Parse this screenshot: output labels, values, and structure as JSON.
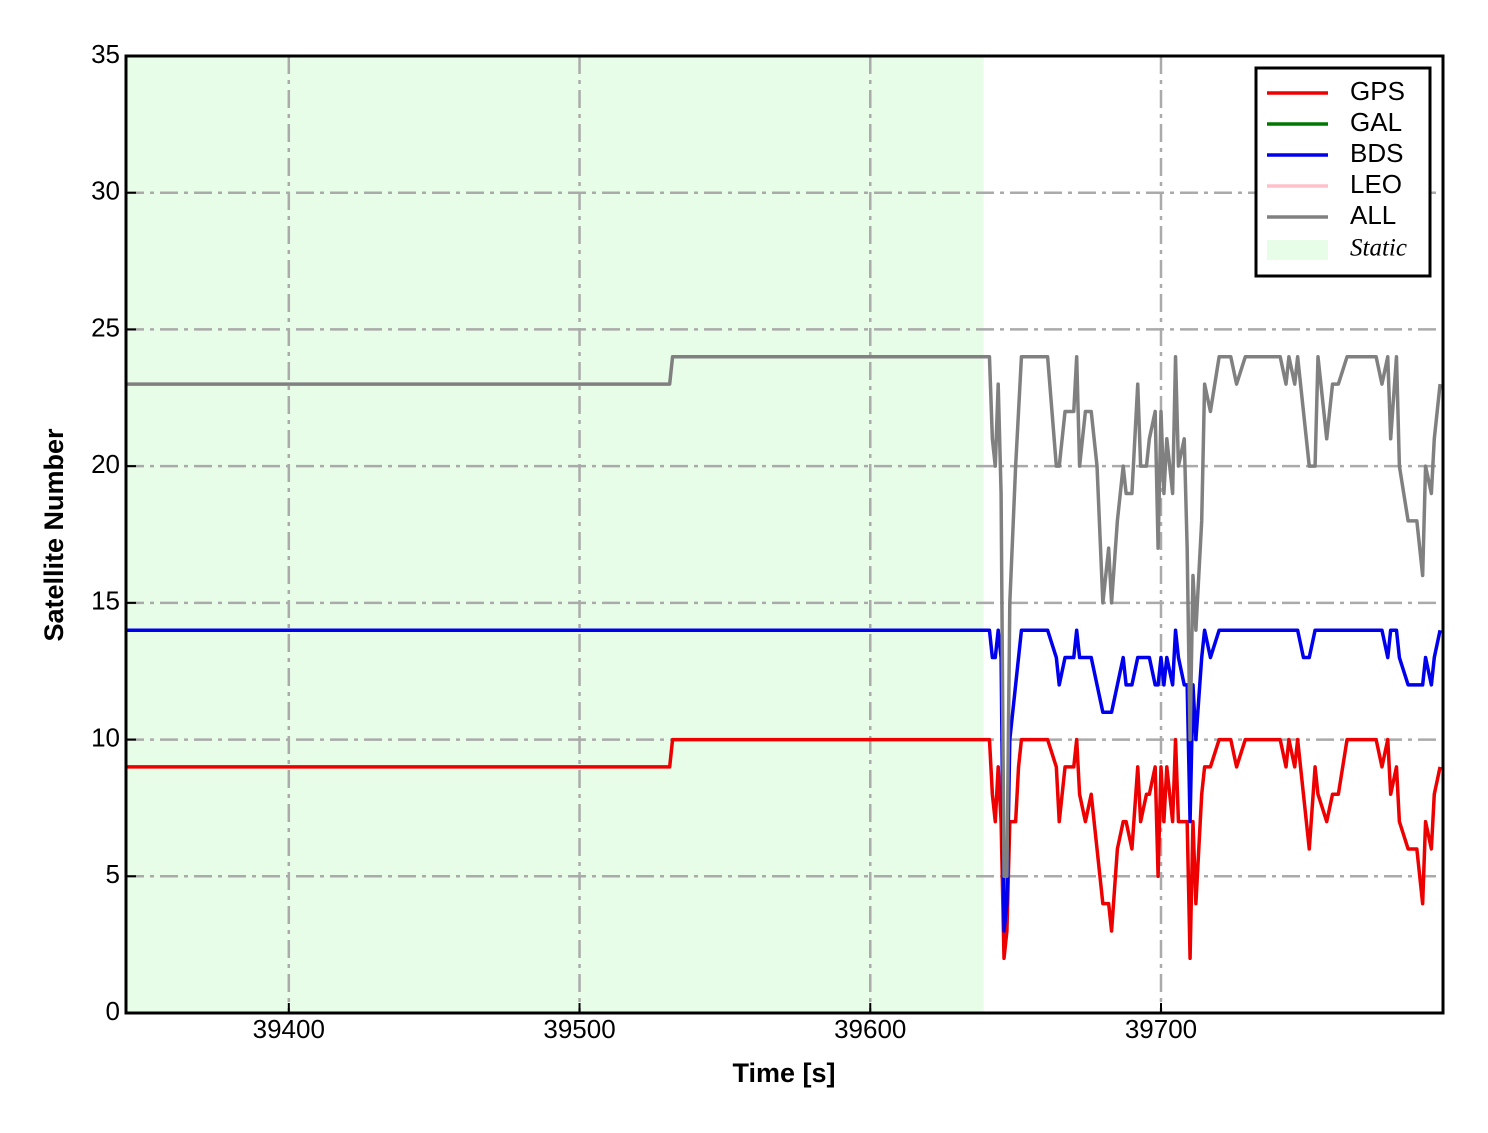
{
  "chart_data": {
    "type": "line",
    "xlabel": "Time [s]",
    "ylabel": "Satellite Number",
    "x": [
      39344,
      39531,
      39532,
      39640,
      39641,
      39642,
      39643,
      39644,
      39645,
      39646,
      39647,
      39648,
      39650,
      39651,
      39652,
      39661,
      39664,
      39665,
      39667,
      39670,
      39671,
      39672,
      39674,
      39676,
      39678,
      39680,
      39682,
      39683,
      39685,
      39687,
      39688,
      39690,
      39692,
      39693,
      39695,
      39696,
      39698,
      39699,
      39700,
      39701,
      39702,
      39704,
      39705,
      39706,
      39708,
      39709,
      39710,
      39711,
      39712,
      39714,
      39715,
      39717,
      39720,
      39724,
      39726,
      39729,
      39741,
      39743,
      39744,
      39746,
      39747,
      39749,
      39751,
      39753,
      39754,
      39757,
      39759,
      39761,
      39764,
      39774,
      39776,
      39778,
      39779,
      39781,
      39782,
      39785,
      39788,
      39790,
      39791,
      39793,
      39794,
      39796
    ],
    "series": [
      {
        "name": "GPS",
        "color": "#ee0000",
        "values": [
          9,
          9,
          10,
          10,
          10,
          8,
          7,
          9,
          7,
          2,
          3,
          7,
          7,
          9,
          10,
          10,
          9,
          7,
          9,
          9,
          10,
          8,
          7,
          8,
          6,
          4,
          4,
          3,
          6,
          7,
          7,
          6,
          9,
          7,
          8,
          8,
          9,
          5,
          9,
          7,
          9,
          7,
          10,
          7,
          7,
          7,
          2,
          7,
          4,
          8,
          9,
          9,
          10,
          10,
          9,
          10,
          10,
          9,
          10,
          9,
          10,
          8,
          6,
          9,
          8,
          7,
          8,
          8,
          10,
          10,
          9,
          10,
          8,
          9,
          7,
          6,
          6,
          4,
          7,
          6,
          8,
          9
        ]
      },
      {
        "name": "GAL",
        "color": "#007700",
        "values": [
          null,
          null,
          null,
          null,
          null,
          null,
          null,
          null,
          null,
          null,
          null,
          null,
          null,
          null,
          null,
          null,
          null,
          null,
          null,
          null,
          null,
          null,
          null,
          null,
          null,
          null,
          null,
          null,
          null,
          null,
          null,
          null,
          null,
          null,
          null,
          null,
          null,
          null,
          null,
          null,
          null,
          null,
          null,
          null,
          null,
          null,
          null,
          null,
          null,
          null,
          null,
          null,
          null,
          null,
          null,
          null,
          null,
          null,
          null,
          null,
          null,
          null,
          null,
          null,
          null,
          null,
          null,
          null,
          null,
          null,
          null,
          null,
          null,
          null,
          null,
          null,
          null,
          null,
          null,
          null,
          null,
          null
        ]
      },
      {
        "name": "BDS",
        "color": "#0000ee",
        "values": [
          14,
          14,
          14,
          14,
          14,
          13,
          13,
          14,
          13,
          3,
          4,
          10,
          12,
          13,
          14,
          14,
          13,
          12,
          13,
          13,
          14,
          13,
          13,
          13,
          12,
          11,
          11,
          11,
          12,
          13,
          12,
          12,
          13,
          13,
          13,
          13,
          12,
          12,
          13,
          12,
          13,
          12,
          14,
          13,
          12,
          12,
          7,
          12,
          10,
          13,
          14,
          13,
          14,
          14,
          14,
          14,
          14,
          14,
          14,
          14,
          14,
          13,
          13,
          14,
          14,
          14,
          14,
          14,
          14,
          14,
          14,
          13,
          14,
          14,
          13,
          12,
          12,
          12,
          13,
          12,
          13,
          14
        ]
      },
      {
        "name": "LEO",
        "color": "#ffc0cb",
        "values": [
          null,
          null,
          null,
          null,
          null,
          null,
          null,
          null,
          null,
          null,
          null,
          null,
          null,
          null,
          null,
          null,
          null,
          null,
          null,
          null,
          null,
          null,
          null,
          null,
          null,
          null,
          null,
          null,
          null,
          null,
          null,
          null,
          null,
          null,
          null,
          null,
          null,
          null,
          null,
          null,
          null,
          null,
          null,
          null,
          null,
          null,
          null,
          null,
          null,
          null,
          null,
          null,
          null,
          null,
          null,
          null,
          null,
          null,
          null,
          null,
          null,
          null,
          null,
          null,
          null,
          null,
          null,
          null,
          null,
          null,
          null,
          null,
          null,
          null,
          null,
          null,
          null,
          null,
          null,
          null,
          null,
          null
        ]
      },
      {
        "name": "ALL",
        "color": "#808080",
        "values": [
          23,
          23,
          24,
          24,
          24,
          21,
          20,
          23,
          19,
          5,
          5,
          15,
          20,
          22,
          24,
          24,
          20,
          20,
          22,
          22,
          24,
          20,
          22,
          22,
          20,
          15,
          17,
          15,
          18,
          20,
          19,
          19,
          23,
          20,
          20,
          21,
          22,
          17,
          22,
          19,
          21,
          19,
          24,
          20,
          21,
          17,
          10,
          16,
          14,
          18,
          23,
          22,
          24,
          24,
          23,
          24,
          24,
          23,
          24,
          23,
          24,
          22,
          20,
          20,
          24,
          21,
          23,
          23,
          24,
          24,
          23,
          24,
          21,
          24,
          20,
          18,
          18,
          16,
          20,
          19,
          21,
          23
        ]
      }
    ],
    "shaded_region": {
      "label": "Static",
      "x": [
        39344,
        39639
      ],
      "color": "#e8fde8"
    },
    "xlim": [
      39344,
      39797
    ],
    "xticks": [
      39400,
      39500,
      39600,
      39700
    ],
    "ylim": [
      0,
      35
    ],
    "yticks": [
      0,
      5,
      10,
      15,
      20,
      25,
      30,
      35
    ],
    "grid": true,
    "legend": "upper right"
  }
}
